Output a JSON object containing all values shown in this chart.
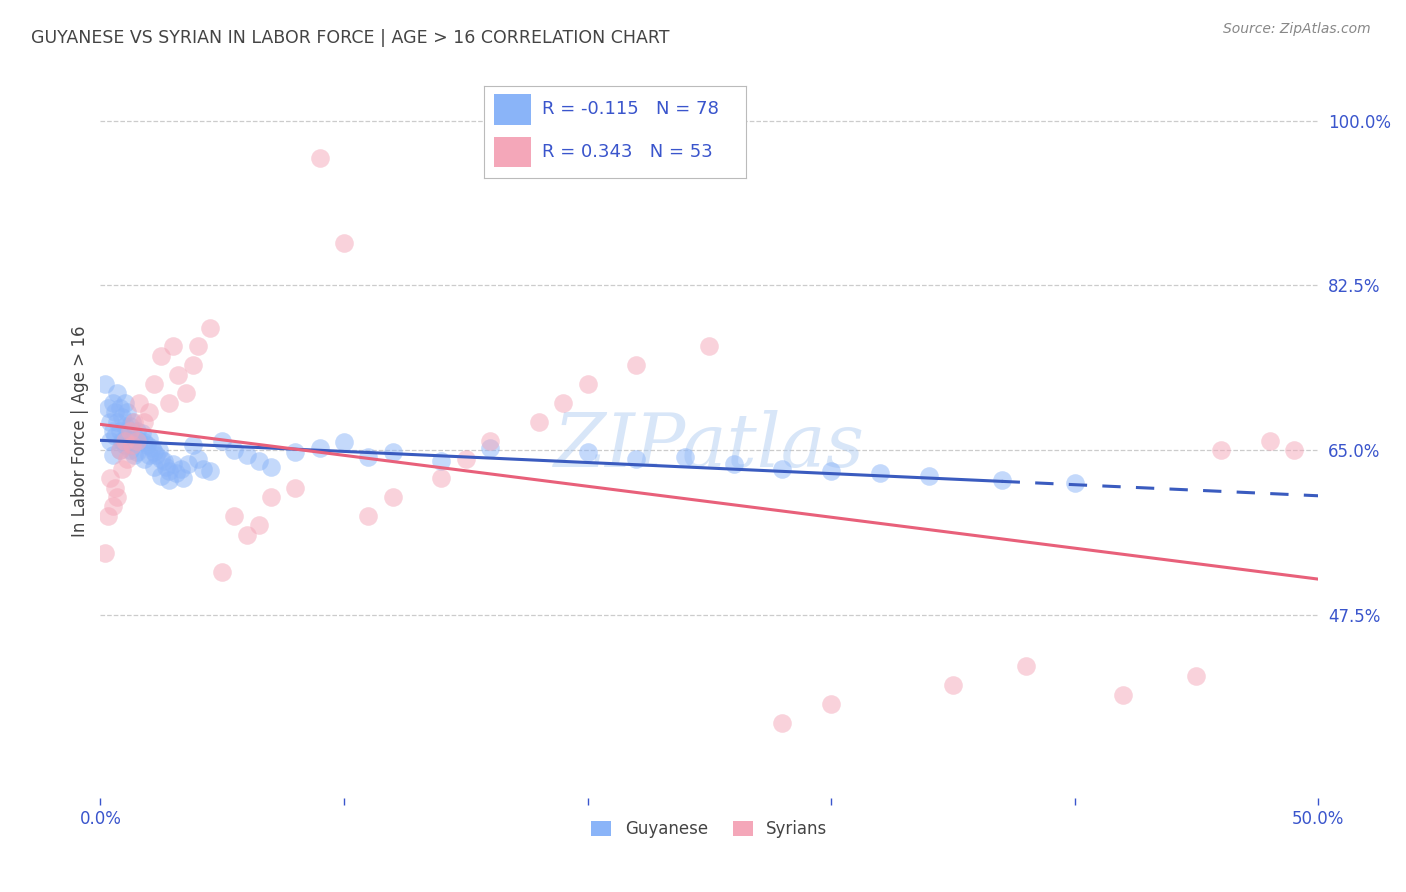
{
  "title": "GUYANESE VS SYRIAN IN LABOR FORCE | AGE > 16 CORRELATION CHART",
  "source": "Source: ZipAtlas.com",
  "ylabel_label": "In Labor Force | Age > 16",
  "xlim": [
    0.0,
    0.5
  ],
  "ylim": [
    0.28,
    1.06
  ],
  "ytick_positions": [
    0.475,
    0.65,
    0.825,
    1.0
  ],
  "yticklabels_right": [
    "47.5%",
    "65.0%",
    "82.5%",
    "100.0%"
  ],
  "background_color": "#ffffff",
  "grid_color": "#cccccc",
  "watermark": "ZIPatlas",
  "legend_r1": "-0.115",
  "legend_n1": "78",
  "legend_r2": "0.343",
  "legend_n2": "53",
  "blue_color": "#8ab4f8",
  "pink_color": "#f4a7b9",
  "blue_line_color": "#3a5bbf",
  "pink_line_color": "#e8607a",
  "legend_text_color": "#3a55cc",
  "title_color": "#444444",
  "axis_label_color": "#444444",
  "right_tick_color": "#3a55cc",
  "guyanese_x": [
    0.002,
    0.003,
    0.004,
    0.004,
    0.005,
    0.005,
    0.005,
    0.006,
    0.006,
    0.007,
    0.007,
    0.008,
    0.008,
    0.008,
    0.009,
    0.009,
    0.01,
    0.01,
    0.01,
    0.011,
    0.011,
    0.012,
    0.012,
    0.013,
    0.013,
    0.014,
    0.014,
    0.015,
    0.015,
    0.016,
    0.017,
    0.018,
    0.018,
    0.019,
    0.02,
    0.02,
    0.021,
    0.022,
    0.022,
    0.023,
    0.024,
    0.025,
    0.025,
    0.026,
    0.027,
    0.028,
    0.028,
    0.03,
    0.031,
    0.033,
    0.034,
    0.036,
    0.038,
    0.04,
    0.042,
    0.045,
    0.05,
    0.055,
    0.06,
    0.065,
    0.07,
    0.08,
    0.09,
    0.1,
    0.11,
    0.12,
    0.14,
    0.16,
    0.2,
    0.22,
    0.24,
    0.26,
    0.28,
    0.3,
    0.32,
    0.34,
    0.37,
    0.4
  ],
  "guyanese_y": [
    0.72,
    0.695,
    0.68,
    0.66,
    0.7,
    0.67,
    0.645,
    0.69,
    0.665,
    0.71,
    0.68,
    0.695,
    0.67,
    0.65,
    0.685,
    0.66,
    0.7,
    0.675,
    0.655,
    0.69,
    0.665,
    0.675,
    0.65,
    0.68,
    0.655,
    0.665,
    0.645,
    0.67,
    0.648,
    0.66,
    0.668,
    0.658,
    0.64,
    0.655,
    0.662,
    0.645,
    0.652,
    0.648,
    0.632,
    0.645,
    0.65,
    0.64,
    0.622,
    0.638,
    0.632,
    0.628,
    0.618,
    0.635,
    0.625,
    0.63,
    0.62,
    0.635,
    0.655,
    0.64,
    0.63,
    0.628,
    0.66,
    0.65,
    0.645,
    0.638,
    0.632,
    0.648,
    0.652,
    0.658,
    0.642,
    0.648,
    0.638,
    0.652,
    0.648,
    0.64,
    0.642,
    0.635,
    0.63,
    0.628,
    0.625,
    0.622,
    0.618,
    0.615
  ],
  "syrian_x": [
    0.002,
    0.003,
    0.004,
    0.005,
    0.006,
    0.007,
    0.008,
    0.009,
    0.01,
    0.011,
    0.012,
    0.013,
    0.014,
    0.015,
    0.016,
    0.018,
    0.02,
    0.022,
    0.025,
    0.028,
    0.03,
    0.032,
    0.035,
    0.038,
    0.04,
    0.045,
    0.05,
    0.055,
    0.06,
    0.065,
    0.07,
    0.08,
    0.09,
    0.1,
    0.11,
    0.12,
    0.14,
    0.15,
    0.16,
    0.18,
    0.19,
    0.2,
    0.22,
    0.25,
    0.28,
    0.3,
    0.35,
    0.38,
    0.42,
    0.45,
    0.46,
    0.48,
    0.49
  ],
  "syrian_y": [
    0.54,
    0.58,
    0.62,
    0.59,
    0.61,
    0.6,
    0.65,
    0.63,
    0.66,
    0.64,
    0.67,
    0.655,
    0.68,
    0.66,
    0.7,
    0.68,
    0.69,
    0.72,
    0.75,
    0.7,
    0.76,
    0.73,
    0.71,
    0.74,
    0.76,
    0.78,
    0.52,
    0.58,
    0.56,
    0.57,
    0.6,
    0.61,
    0.96,
    0.87,
    0.58,
    0.6,
    0.62,
    0.64,
    0.66,
    0.68,
    0.7,
    0.72,
    0.74,
    0.76,
    0.36,
    0.38,
    0.4,
    0.42,
    0.39,
    0.41,
    0.65,
    0.66,
    0.65
  ]
}
